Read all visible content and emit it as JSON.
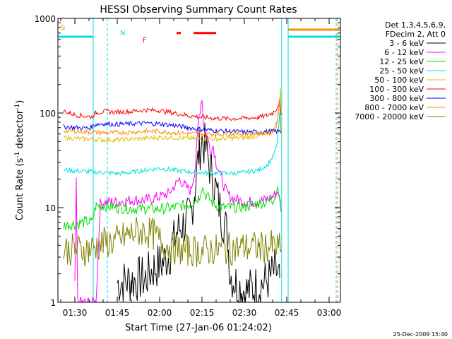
{
  "chart_data": {
    "type": "line",
    "title": "HESSI Observing Summary Count Rates",
    "xlabel": "Start Time (27-Jan-06 01:24:02)",
    "ylabel": "Count Rate (s⁻¹ detector⁻¹)",
    "ylabel_parts": [
      "Count Rate (s",
      "-1",
      " detector",
      "-1",
      ")"
    ],
    "y_scale": "log",
    "ylim": [
      1,
      1000
    ],
    "xlim": [
      "01:24",
      "03:04"
    ],
    "xlim_min": [
      84,
      184
    ],
    "x_ticks": [
      {
        "label": "01:30",
        "min": 90
      },
      {
        "label": "01:45",
        "min": 105
      },
      {
        "label": "02:00",
        "min": 120
      },
      {
        "label": "02:15",
        "min": 135
      },
      {
        "label": "02:30",
        "min": 150
      },
      {
        "label": "02:45",
        "min": 165
      },
      {
        "label": "03:00",
        "min": 180
      }
    ],
    "y_ticks": [
      {
        "label": "1",
        "value": 1
      },
      {
        "label": "10",
        "value": 10
      },
      {
        "label": "100",
        "value": 100
      },
      {
        "label": "1000",
        "value": 1000
      }
    ],
    "legend_position": "right",
    "legend_header": [
      "Det 1,3,4,5,6,9,",
      "FDecim 2, Att 0"
    ],
    "footer_date": "25-Dec-2009 15:40",
    "flags": [
      {
        "label": "S",
        "color": "#ff8c00",
        "min": 85
      },
      {
        "label": "N",
        "color": "#00e0e0",
        "min": 106
      },
      {
        "label": "F",
        "color": "#ff0000",
        "min": 114
      }
    ],
    "flag_bars": [
      {
        "color": "#ff0000",
        "start": 126,
        "end": 127.5,
        "y": 700
      },
      {
        "color": "#ff0000",
        "start": 132,
        "end": 140,
        "y": 700
      },
      {
        "color": "#00e0e0",
        "start": 84,
        "end": 96.5,
        "y": 640
      },
      {
        "color": "#ff8c00",
        "start": 165.5,
        "end": 184,
        "y": 760
      },
      {
        "color": "#00e0e0",
        "start": 165.5,
        "end": 184,
        "y": 640
      }
    ],
    "vlines": [
      {
        "color": "#00e0e0",
        "min": 84,
        "dashed": true
      },
      {
        "color": "#00e0e0",
        "min": 96.5,
        "dashed": false
      },
      {
        "color": "#00e0e0",
        "min": 101.5,
        "dashed": true
      },
      {
        "color": "#00e0e0",
        "min": 163.2,
        "dashed": false
      },
      {
        "color": "#00e0e0",
        "min": 165.5,
        "dashed": false
      },
      {
        "color": "#00e0e0",
        "min": 182.5,
        "dashed": true
      },
      {
        "color": "#ff8c00",
        "min": 183,
        "dashed": true
      }
    ],
    "series": [
      {
        "name": "3 - 6 keV",
        "color": "#000000",
        "x": [
          105,
          110,
          115,
          118,
          121,
          124,
          126,
          128,
          129.5,
          131,
          132.5,
          134,
          135,
          136,
          137,
          138,
          139,
          140,
          141,
          142,
          143,
          144,
          145,
          147,
          149,
          151,
          153,
          155,
          157,
          159,
          161,
          162.5
        ],
        "y": [
          1.6,
          1.7,
          1.8,
          2.3,
          2.6,
          3.4,
          5.5,
          6.5,
          7.0,
          8.5,
          16,
          40,
          52,
          45,
          35,
          25,
          20,
          15,
          11,
          8,
          7,
          5,
          2,
          1.6,
          1.4,
          1.3,
          1.4,
          1.5,
          1.6,
          1.8,
          2.2,
          1.8
        ]
      },
      {
        "name": "6 - 12 keV",
        "color": "#ff00ff",
        "x": [
          90,
          90.5,
          91,
          92,
          94,
          96,
          97.5,
          99,
          101,
          103,
          105,
          110,
          115,
          120,
          123,
          126,
          127,
          129,
          131,
          132.5,
          134,
          135,
          135.5,
          136,
          137,
          138,
          139,
          140,
          141,
          142,
          143,
          145,
          148,
          151,
          154,
          157,
          160,
          162,
          163
        ],
        "y": [
          1.5,
          18,
          1.0,
          1.0,
          1.0,
          1.0,
          1.0,
          11,
          11.5,
          11.5,
          11.5,
          12,
          12,
          13,
          14,
          18,
          20,
          17,
          15,
          25,
          95,
          150,
          80,
          65,
          55,
          40,
          45,
          30,
          25,
          20,
          16,
          13,
          12,
          11.5,
          11.5,
          12,
          13,
          15,
          9
        ]
      },
      {
        "name": "12 - 25 keV",
        "color": "#00e000",
        "x": [
          86,
          88,
          90,
          92,
          94,
          96,
          97.5,
          100,
          105,
          110,
          115,
          120,
          125,
          128,
          131,
          134,
          135,
          136,
          137,
          138,
          139,
          140,
          142,
          145,
          150,
          155,
          160,
          162,
          163
        ],
        "y": [
          6.5,
          6.6,
          6.7,
          6.9,
          7.1,
          7.0,
          10.5,
          10.5,
          10,
          9.8,
          9.6,
          9.7,
          10,
          10.5,
          11,
          13,
          17,
          14,
          13,
          12,
          11,
          10.5,
          10,
          10,
          10.3,
          11,
          12,
          17,
          9
        ]
      },
      {
        "name": "25 - 50 keV",
        "color": "#00e0e0",
        "x": [
          86,
          90,
          95,
          100,
          105,
          110,
          115,
          120,
          125,
          130,
          135,
          140,
          145,
          150,
          155,
          158,
          160,
          161.5,
          162.5,
          163
        ],
        "y": [
          25,
          24.5,
          24,
          23.5,
          23,
          23.5,
          25,
          26,
          25,
          24,
          23.5,
          23,
          23,
          23.5,
          25,
          28,
          34,
          45,
          95,
          60
        ]
      },
      {
        "name": "50 - 100 keV",
        "color": "#e0c000",
        "x": [
          86,
          90,
          95,
          100,
          105,
          110,
          115,
          120,
          125,
          130,
          135,
          140,
          145,
          150,
          155,
          159,
          161,
          162,
          162.8,
          163
        ],
        "y": [
          55,
          54,
          53,
          52,
          52,
          53,
          54,
          55,
          55,
          54,
          53,
          53,
          54,
          55,
          57,
          60,
          68,
          90,
          180,
          120
        ]
      },
      {
        "name": "100 - 300 keV",
        "color": "#ff0000",
        "x": [
          86,
          88,
          90,
          93,
          96,
          97.5,
          100,
          105,
          110,
          115,
          120,
          125,
          130,
          135,
          140,
          145,
          150,
          155,
          158,
          160,
          161.5,
          162.5,
          163
        ],
        "y": [
          105,
          100,
          96,
          93,
          91,
          100,
          104,
          102,
          104,
          108,
          106,
          100,
          94,
          90,
          88,
          87,
          88,
          90,
          94,
          100,
          112,
          135,
          95
        ]
      },
      {
        "name": "300 - 800 keV",
        "color": "#0000ff",
        "x": [
          86,
          90,
          95,
          97.5,
          100,
          105,
          110,
          115,
          120,
          125,
          130,
          135,
          140,
          145,
          150,
          155,
          160,
          163
        ],
        "y": [
          72,
          70,
          69,
          76,
          77,
          76,
          77,
          78,
          77,
          74,
          70,
          67,
          65,
          64,
          63,
          63,
          64,
          64
        ]
      },
      {
        "name": "800 - 7000 keV",
        "color": "#ff8c00",
        "x": [
          86,
          90,
          95,
          100,
          105,
          110,
          115,
          120,
          125,
          130,
          135,
          140,
          145,
          150,
          155,
          160,
          161.5,
          162.5,
          163
        ],
        "y": [
          65,
          64,
          63,
          62,
          62,
          63,
          64,
          64,
          62,
          61,
          60,
          60,
          60,
          60.5,
          61,
          63,
          78,
          140,
          60
        ]
      },
      {
        "name": "7000 - 20000 keV",
        "color": "#808000",
        "x": [
          86,
          90,
          95,
          100,
          105,
          110,
          112,
          115,
          118,
          121,
          124,
          127,
          130,
          135,
          140,
          145,
          150,
          155,
          160,
          163
        ],
        "y": [
          3.6,
          3.6,
          3.6,
          4.2,
          4.5,
          5.3,
          5.6,
          5.6,
          5.2,
          4.2,
          3.8,
          3.6,
          3.5,
          3.5,
          3.6,
          3.7,
          3.8,
          3.8,
          3.9,
          3.6
        ]
      }
    ]
  }
}
